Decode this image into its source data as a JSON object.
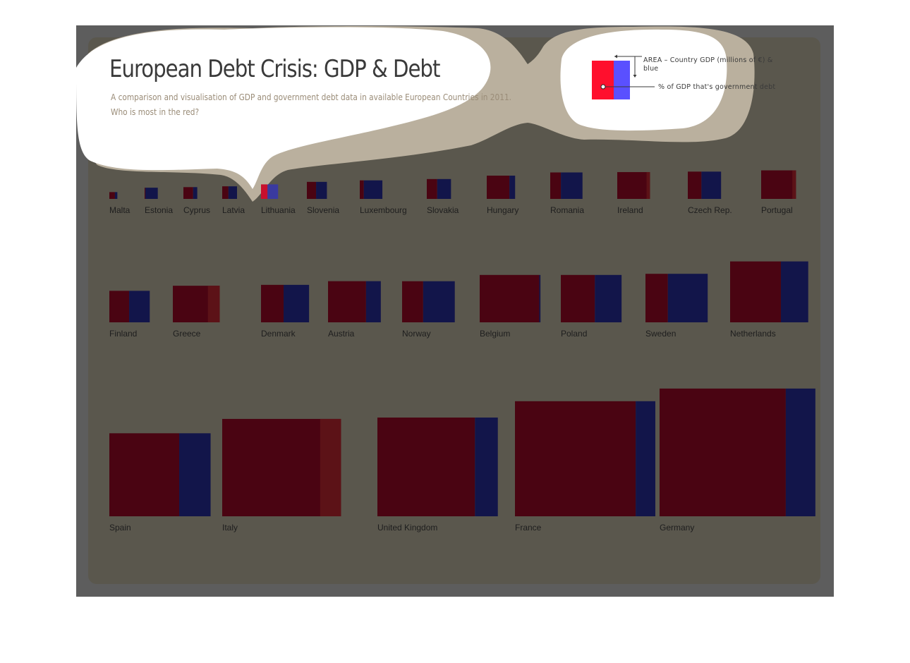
{
  "header": {
    "title": "European Debt Crisis: GDP & Debt",
    "subtitle_line1": "A comparison and visualisation of GDP and government debt data in available European Countries in 2011.",
    "subtitle_line2": "Who is most in the red?"
  },
  "legend": {
    "area_label": "AREA – Country GDP (millions of  €) & blue",
    "pct_label": "% of GDP that's government debt",
    "red_color": "#ff0f2d",
    "blue_color": "#5a50ff"
  },
  "colors": {
    "frame": "#5d5d5d",
    "card": "#5a574d",
    "bubble": "#ffffff",
    "bubble_halo": "#bab09e",
    "debt_red": "#4a0412",
    "debt_over_100": "#5c1217",
    "gdp_blue": "#12154a",
    "highlight_red": "#c8102e",
    "highlight_blue": "#3a3aa0"
  },
  "chart_data": {
    "type": "area-proportional bars",
    "size_measure": "Country GDP (millions of €), shown by area",
    "split_measure": "% of GDP that's government debt, shown by red share",
    "countries": [
      {
        "name": "Malta",
        "gdp_rel": 0.007,
        "debt_pct": 70
      },
      {
        "name": "Estonia",
        "gdp_rel": 0.019,
        "debt_pct": 6
      },
      {
        "name": "Cyprus",
        "gdp_rel": 0.021,
        "debt_pct": 70
      },
      {
        "name": "Latvia",
        "gdp_rel": 0.024,
        "debt_pct": 42
      },
      {
        "name": "Lithuania",
        "gdp_rel": 0.032,
        "debt_pct": 38,
        "highlighted": true
      },
      {
        "name": "Slovenia",
        "gdp_rel": 0.044,
        "debt_pct": 46
      },
      {
        "name": "Luxembourg",
        "gdp_rel": 0.054,
        "debt_pct": 18
      },
      {
        "name": "Slovakia",
        "gdp_rel": 0.062,
        "debt_pct": 43
      },
      {
        "name": "Hungary",
        "gdp_rel": 0.085,
        "debt_pct": 80
      },
      {
        "name": "Romania",
        "gdp_rel": 0.11,
        "debt_pct": 33
      },
      {
        "name": "Ireland",
        "gdp_rel": 0.113,
        "debt_pct": 108
      },
      {
        "name": "Czech Rep.",
        "gdp_rel": 0.117,
        "debt_pct": 41
      },
      {
        "name": "Portugal",
        "gdp_rel": 0.128,
        "debt_pct": 108
      },
      {
        "name": "Finland",
        "gdp_rel": 0.164,
        "debt_pct": 49
      },
      {
        "name": "Greece",
        "gdp_rel": 0.221,
        "debt_pct": 165
      },
      {
        "name": "Denmark",
        "gdp_rel": 0.232,
        "debt_pct": 47
      },
      {
        "name": "Austria",
        "gdp_rel": 0.28,
        "debt_pct": 72
      },
      {
        "name": "Norway",
        "gdp_rel": 0.279,
        "debt_pct": 40
      },
      {
        "name": "Belgium",
        "gdp_rel": 0.371,
        "debt_pct": 98
      },
      {
        "name": "Poland",
        "gdp_rel": 0.371,
        "debt_pct": 56
      },
      {
        "name": "Sweden",
        "gdp_rel": 0.389,
        "debt_pct": 36
      },
      {
        "name": "Netherlands",
        "gdp_rel": 0.613,
        "debt_pct": 65
      },
      {
        "name": "Spain",
        "gdp_rel": 1.083,
        "debt_pct": 69
      },
      {
        "name": "Italy",
        "gdp_rel": 1.49,
        "debt_pct": 121
      },
      {
        "name": "United Kingdom",
        "gdp_rel": 1.532,
        "debt_pct": 81
      },
      {
        "name": "France",
        "gdp_rel": 2.081,
        "debt_pct": 86
      },
      {
        "name": "Germany",
        "gdp_rel": 2.564,
        "debt_pct": 81
      }
    ]
  }
}
